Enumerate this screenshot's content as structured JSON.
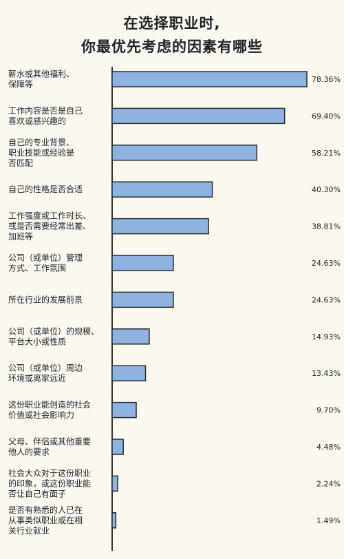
{
  "chart_data": {
    "type": "bar",
    "orientation": "horizontal",
    "title_lines": [
      "在选择职业时,",
      "你最优先考虑的因素有哪些"
    ],
    "unit": "%",
    "xlim": [
      0,
      78.36
    ],
    "grid": false,
    "colors": {
      "bar": "#8db4e0",
      "bar_stroke": "#2b2b2b",
      "axis": "#333333"
    },
    "categories": [
      [
        "薪水或其他福利、",
        "保障等"
      ],
      [
        "工作内容是否是自己",
        "喜欢或感兴趣的"
      ],
      [
        "自己的专业背景、",
        "职业技能或经验是",
        "否匹配"
      ],
      [
        "自己的性格是否合适"
      ],
      [
        "工作强度或工作时长、",
        "或是否需要经常出差、",
        "加班等"
      ],
      [
        "公司（或单位）管理",
        "方式、工作氛围"
      ],
      [
        "所在行业的发展前景"
      ],
      [
        "公司（或单位）的规模、",
        "平台大小或性质"
      ],
      [
        "公司（或单位）周边",
        "环境或离家远近"
      ],
      [
        "这份职业能创造的社会",
        "价值或社会影响力"
      ],
      [
        "父母、伴侣或其他重要",
        "他人的要求"
      ],
      [
        "社会大众对于这份职业",
        "的印象，或这份职业能",
        "否让自己有面子"
      ],
      [
        "是否有熟悉的人已在",
        "从事类似职业或在相",
        "关行业就业"
      ]
    ],
    "values": [
      78.36,
      69.4,
      58.21,
      40.3,
      38.81,
      24.63,
      24.63,
      14.93,
      13.43,
      9.7,
      4.48,
      2.24,
      1.49
    ],
    "value_labels": [
      "78.36%",
      "69.40%",
      "58.21%",
      "40.30%",
      "38.81%",
      "24.63%",
      "24.63%",
      "14.93%",
      "13.43%",
      "9.70%",
      "4.48%",
      "2.24%",
      "1.49%"
    ]
  }
}
